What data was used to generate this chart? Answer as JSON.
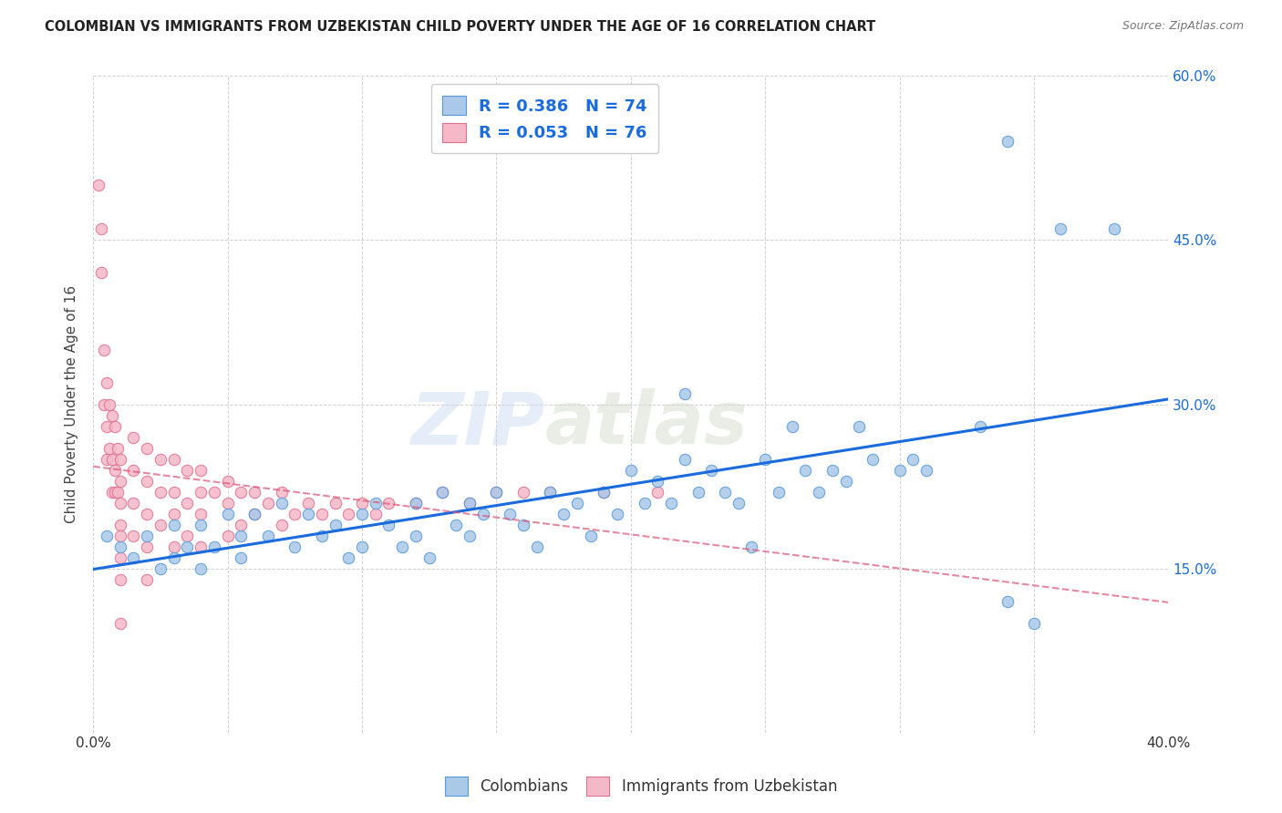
{
  "title": "COLOMBIAN VS IMMIGRANTS FROM UZBEKISTAN CHILD POVERTY UNDER THE AGE OF 16 CORRELATION CHART",
  "source": "Source: ZipAtlas.com",
  "ylabel": "Child Poverty Under the Age of 16",
  "xlim": [
    0.0,
    0.4
  ],
  "ylim": [
    0.0,
    0.6
  ],
  "watermark": "ZIPatlas",
  "background_color": "#ffffff",
  "grid_color": "#cccccc",
  "title_color": "#222222",
  "right_axis_tick_color": "#1a6bdd",
  "colombians": {
    "R": 0.386,
    "N": 74,
    "fill_color": "#aac8e8",
    "edge_color": "#5599dd",
    "line_color": "#1a6bdd",
    "x": [
      0.005,
      0.01,
      0.015,
      0.02,
      0.025,
      0.03,
      0.03,
      0.035,
      0.04,
      0.04,
      0.045,
      0.05,
      0.055,
      0.055,
      0.06,
      0.065,
      0.07,
      0.075,
      0.08,
      0.085,
      0.09,
      0.095,
      0.1,
      0.1,
      0.105,
      0.11,
      0.115,
      0.12,
      0.12,
      0.125,
      0.13,
      0.135,
      0.14,
      0.14,
      0.145,
      0.15,
      0.155,
      0.16,
      0.165,
      0.17,
      0.175,
      0.18,
      0.185,
      0.19,
      0.195,
      0.2,
      0.205,
      0.21,
      0.215,
      0.22,
      0.225,
      0.23,
      0.235,
      0.24,
      0.245,
      0.25,
      0.255,
      0.26,
      0.265,
      0.27,
      0.275,
      0.28,
      0.285,
      0.29,
      0.3,
      0.305,
      0.31,
      0.33,
      0.34,
      0.22,
      0.35,
      0.34,
      0.36,
      0.38
    ],
    "y": [
      0.18,
      0.17,
      0.16,
      0.18,
      0.15,
      0.19,
      0.16,
      0.17,
      0.19,
      0.15,
      0.17,
      0.2,
      0.18,
      0.16,
      0.2,
      0.18,
      0.21,
      0.17,
      0.2,
      0.18,
      0.19,
      0.16,
      0.2,
      0.17,
      0.21,
      0.19,
      0.17,
      0.21,
      0.18,
      0.16,
      0.22,
      0.19,
      0.21,
      0.18,
      0.2,
      0.22,
      0.2,
      0.19,
      0.17,
      0.22,
      0.2,
      0.21,
      0.18,
      0.22,
      0.2,
      0.24,
      0.21,
      0.23,
      0.21,
      0.25,
      0.22,
      0.24,
      0.22,
      0.21,
      0.17,
      0.25,
      0.22,
      0.28,
      0.24,
      0.22,
      0.24,
      0.23,
      0.28,
      0.25,
      0.24,
      0.25,
      0.24,
      0.28,
      0.12,
      0.31,
      0.1,
      0.54,
      0.46,
      0.46
    ]
  },
  "uzbekistanis": {
    "R": 0.053,
    "N": 76,
    "fill_color": "#f5b8c8",
    "edge_color": "#e07090",
    "line_color": "#dd5577",
    "x": [
      0.002,
      0.003,
      0.003,
      0.004,
      0.004,
      0.005,
      0.005,
      0.005,
      0.006,
      0.006,
      0.007,
      0.007,
      0.007,
      0.008,
      0.008,
      0.008,
      0.009,
      0.009,
      0.01,
      0.01,
      0.01,
      0.01,
      0.01,
      0.01,
      0.01,
      0.01,
      0.015,
      0.015,
      0.015,
      0.015,
      0.02,
      0.02,
      0.02,
      0.02,
      0.02,
      0.025,
      0.025,
      0.025,
      0.03,
      0.03,
      0.03,
      0.03,
      0.035,
      0.035,
      0.035,
      0.04,
      0.04,
      0.04,
      0.04,
      0.045,
      0.05,
      0.05,
      0.05,
      0.055,
      0.055,
      0.06,
      0.06,
      0.065,
      0.07,
      0.07,
      0.075,
      0.08,
      0.085,
      0.09,
      0.095,
      0.1,
      0.105,
      0.11,
      0.12,
      0.13,
      0.14,
      0.15,
      0.16,
      0.17,
      0.19,
      0.21
    ],
    "y": [
      0.5,
      0.46,
      0.42,
      0.35,
      0.3,
      0.32,
      0.28,
      0.25,
      0.3,
      0.26,
      0.29,
      0.25,
      0.22,
      0.28,
      0.24,
      0.22,
      0.26,
      0.22,
      0.25,
      0.23,
      0.21,
      0.19,
      0.18,
      0.16,
      0.14,
      0.1,
      0.27,
      0.24,
      0.21,
      0.18,
      0.26,
      0.23,
      0.2,
      0.17,
      0.14,
      0.25,
      0.22,
      0.19,
      0.25,
      0.22,
      0.2,
      0.17,
      0.24,
      0.21,
      0.18,
      0.24,
      0.22,
      0.2,
      0.17,
      0.22,
      0.23,
      0.21,
      0.18,
      0.22,
      0.19,
      0.22,
      0.2,
      0.21,
      0.22,
      0.19,
      0.2,
      0.21,
      0.2,
      0.21,
      0.2,
      0.21,
      0.2,
      0.21,
      0.21,
      0.22,
      0.21,
      0.22,
      0.22,
      0.22,
      0.22,
      0.22
    ]
  }
}
